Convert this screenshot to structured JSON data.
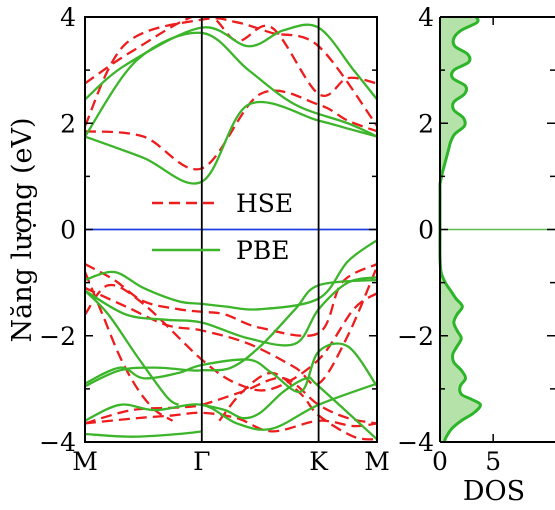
{
  "chart_data": [
    {
      "type": "line",
      "subtype": "band-structure",
      "ylabel": "Năng lượng (eV)",
      "xlabel": "",
      "ylim": [
        -4,
        4
      ],
      "yticks": [
        -4,
        -2,
        0,
        2,
        4
      ],
      "ytick_labels": [
        "−4",
        "−2",
        "0",
        "2",
        "4"
      ],
      "k_path": [
        "M",
        "Γ",
        "K",
        "M"
      ],
      "k_positions": [
        0,
        1,
        2,
        2.5
      ],
      "fermi_level": 0,
      "fermi_color": "#1f3fe0",
      "legend": {
        "placement": "center",
        "entries": [
          "HSE",
          "PBE"
        ]
      },
      "series": [
        {
          "name": "HSE",
          "style": "dashed",
          "color": "#ee1c1c",
          "bands": [
            {
              "x": [
                0,
                0.5,
                1,
                1.5,
                2,
                2.25,
                2.5
              ],
              "y": [
                1.85,
                1.75,
                1.15,
                2.55,
                2.35,
                2.05,
                1.85
              ]
            },
            {
              "x": [
                0,
                0.4,
                1,
                1.3,
                1.6,
                2,
                2.25,
                2.5
              ],
              "y": [
                2.75,
                3.35,
                4.05,
                3.55,
                3.8,
                2.55,
                2.85,
                2.75
              ]
            },
            {
              "x": [
                0,
                0.35,
                1,
                1.3,
                1.6,
                2,
                2.5
              ],
              "y": [
                1.95,
                3.5,
                3.95,
                3.9,
                3.7,
                3.45,
                1.95
              ]
            },
            {
              "x": [
                0,
                0.25,
                0.5,
                0.8,
                1,
                1.2,
                1.5,
                2,
                2.2,
                2.5
              ],
              "y": [
                -0.65,
                -0.95,
                -1.35,
                -1.5,
                -1.55,
                -1.6,
                -1.85,
                -1.95,
                -1.0,
                -0.65
              ]
            },
            {
              "x": [
                0,
                0.35,
                0.7,
                1,
                1.4,
                1.8,
                2,
                2.25,
                2.5
              ],
              "y": [
                -1.1,
                -1.45,
                -1.8,
                -1.9,
                -2.15,
                -2.6,
                -2.9,
                -2.0,
                -0.7
              ]
            },
            {
              "x": [
                0,
                0.2,
                0.5,
                1,
                1.3,
                1.6,
                2,
                2.3,
                2.5
              ],
              "y": [
                -1.6,
                -1.05,
                -1.4,
                -2.45,
                -2.9,
                -3.0,
                -2.45,
                -1.5,
                -1.2
              ]
            },
            {
              "x": [
                0,
                0.15,
                0.3,
                0.45,
                0.6,
                0.75
              ],
              "y": [
                -0.8,
                -1.6,
                -2.4,
                -3.0,
                -3.4,
                -3.6
              ]
            },
            {
              "x": [
                0,
                0.4,
                0.8,
                1,
                1.35,
                1.7,
                2,
                2.25,
                2.5
              ],
              "y": [
                -3.65,
                -3.4,
                -3.35,
                -3.3,
                -3.05,
                -2.8,
                -3.3,
                -3.55,
                -3.65
              ]
            },
            {
              "x": [
                0,
                0.45,
                0.75,
                1,
                1.3,
                1.6,
                2,
                2.3,
                2.5
              ],
              "y": [
                -3.65,
                -3.55,
                -3.5,
                -3.45,
                -3.55,
                -3.8,
                -3.6,
                -3.7,
                -3.65
              ]
            },
            {
              "x": [
                1.15,
                1.35,
                1.6,
                1.85,
                2,
                2.3,
                2.5
              ],
              "y": [
                -3.6,
                -3.05,
                -2.7,
                -3.1,
                -3.5,
                -3.9,
                -3.95
              ]
            }
          ]
        },
        {
          "name": "PBE",
          "style": "solid",
          "color": "#3cb52a",
          "bands": [
            {
              "x": [
                0,
                0.5,
                1,
                1.4,
                2,
                2.25,
                2.5
              ],
              "y": [
                1.75,
                1.35,
                0.9,
                2.35,
                2.05,
                1.9,
                1.75
              ]
            },
            {
              "x": [
                0,
                0.35,
                1,
                1.4,
                1.7,
                2,
                2.3,
                2.5
              ],
              "y": [
                2.45,
                3.1,
                3.8,
                3.45,
                3.75,
                3.8,
                3.0,
                2.45
              ]
            },
            {
              "x": [
                0,
                0.45,
                1,
                1.4,
                1.8,
                2.25,
                2.5
              ],
              "y": [
                1.75,
                3.2,
                3.7,
                3.0,
                2.35,
                2.0,
                1.75
              ]
            },
            {
              "x": [
                0,
                0.25,
                0.5,
                0.8,
                1,
                1.2,
                1.5,
                2,
                2.25,
                2.5
              ],
              "y": [
                -0.95,
                -0.8,
                -1.1,
                -1.35,
                -1.4,
                -1.45,
                -1.5,
                -1.3,
                -0.6,
                -0.2
              ]
            },
            {
              "x": [
                0,
                0.35,
                0.7,
                1,
                1.4,
                1.8,
                2,
                2.25,
                2.5
              ],
              "y": [
                -1.15,
                -1.6,
                -1.7,
                -1.75,
                -2.05,
                -2.15,
                -1.5,
                -1.0,
                -0.9
              ]
            },
            {
              "x": [
                0,
                0.2,
                0.45,
                0.7,
                0.8
              ],
              "y": [
                -1.15,
                -1.6,
                -2.4,
                -3.15,
                -3.3
              ]
            },
            {
              "x": [
                0,
                0.3,
                0.6,
                0.9,
                1,
                1.25,
                1.5,
                1.8,
                2,
                2.5
              ],
              "y": [
                -2.95,
                -2.65,
                -2.6,
                -2.65,
                -2.65,
                -2.6,
                -2.2,
                -1.5,
                -1.05,
                -0.95
              ]
            },
            {
              "x": [
                0,
                0.3,
                0.5,
                0.8,
                1,
                1.4,
                1.6,
                1.85,
                2,
                2.25,
                2.5
              ],
              "y": [
                -2.9,
                -2.6,
                -2.8,
                -2.7,
                -2.55,
                -2.45,
                -2.7,
                -3.05,
                -2.3,
                -2.2,
                -2.95
              ]
            },
            {
              "x": [
                0,
                0.3,
                0.6,
                1,
                1.3,
                1.6,
                2,
                2.5
              ],
              "y": [
                -3.6,
                -3.3,
                -3.4,
                -3.3,
                -3.65,
                -3.75,
                -3.3,
                -2.9
              ]
            },
            {
              "x": [
                1,
                1.2,
                1.35,
                1.5,
                1.7,
                1.9,
                2,
                2.5
              ],
              "y": [
                -3.3,
                -3.4,
                -3.55,
                -3.45,
                -3.05,
                -2.8,
                -2.95,
                -3.95
              ]
            },
            {
              "x": [
                0,
                0.4,
                0.8,
                1
              ],
              "y": [
                -3.85,
                -3.9,
                -3.85,
                -3.8
              ]
            }
          ]
        }
      ]
    },
    {
      "type": "area",
      "subtype": "density-of-states",
      "xlabel": "DOS",
      "ylabel": "",
      "ylim": [
        -4,
        4
      ],
      "xlim": [
        0,
        11
      ],
      "xticks": [
        0,
        5
      ],
      "xtick_labels": [
        "0",
        "5"
      ],
      "yticks": [
        -4,
        -2,
        0,
        2,
        4
      ],
      "ytick_labels": [
        "−4",
        "−2",
        "0",
        "2",
        "4"
      ],
      "line_color": "#2db52a",
      "fill_color": "#b5e2a8",
      "fermi_color": "#5ac04c",
      "energy": [
        4.0,
        3.9,
        3.75,
        3.6,
        3.45,
        3.3,
        3.15,
        3.0,
        2.85,
        2.7,
        2.55,
        2.4,
        2.25,
        2.1,
        1.95,
        1.8,
        1.65,
        1.5,
        1.35,
        1.2,
        1.05,
        0.9,
        0.8,
        0,
        -0.5,
        -0.8,
        -1.0,
        -1.15,
        -1.3,
        -1.45,
        -1.6,
        -1.75,
        -1.9,
        -2.05,
        -2.2,
        -2.35,
        -2.5,
        -2.65,
        -2.8,
        -2.95,
        -3.1,
        -3.2,
        -3.3,
        -3.45,
        -3.6,
        -3.75,
        -3.9,
        -4.0
      ],
      "values": [
        3.4,
        3.5,
        2.0,
        1.3,
        1.4,
        2.6,
        2.7,
        1.3,
        1.2,
        2.4,
        2.3,
        1.3,
        1.3,
        2.2,
        2.3,
        1.4,
        1.0,
        0.8,
        0.6,
        0.4,
        0.2,
        0.05,
        0,
        0,
        0,
        0.1,
        0.5,
        1.0,
        1.5,
        2.1,
        1.6,
        1.3,
        1.6,
        2.0,
        1.6,
        1.2,
        1.3,
        2.0,
        2.4,
        1.9,
        2.0,
        3.0,
        3.8,
        3.2,
        2.0,
        1.1,
        0.6,
        0.4
      ]
    }
  ]
}
